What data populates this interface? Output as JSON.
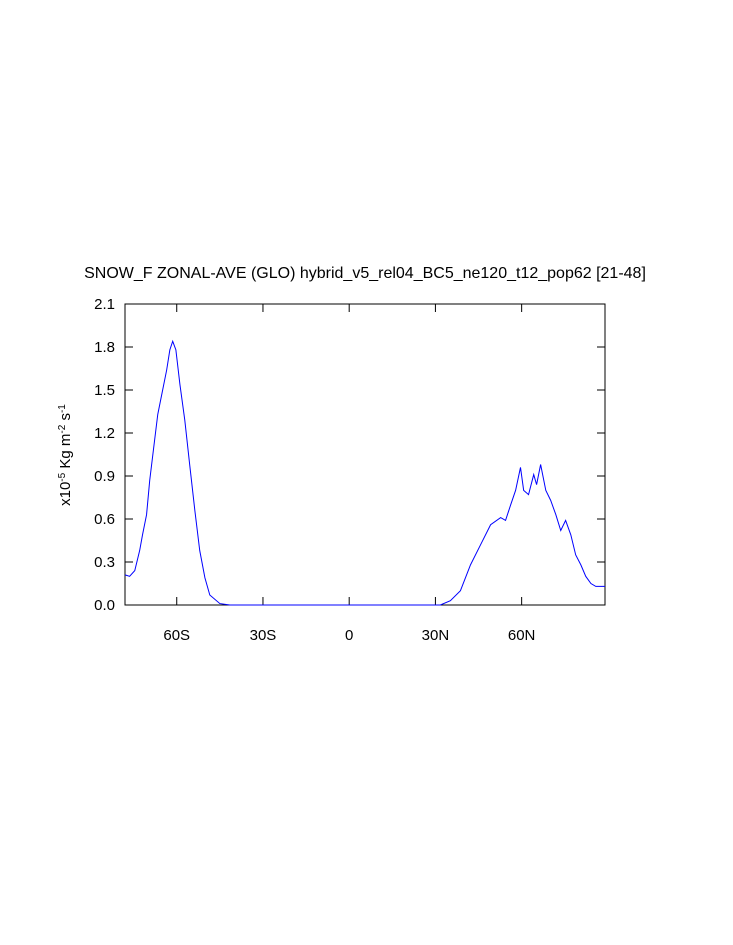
{
  "chart_data": {
    "type": "line",
    "title": "SNOW_F ZONAL-AVE (GLO) hybrid_v5_rel04_BC5_ne120_t12_pop62 [21-48]",
    "ylabel_parts": [
      "x10",
      "-5",
      " Kg m",
      "-2",
      " s",
      "-1"
    ],
    "xlim": [
      -78,
      89
    ],
    "ylim": [
      0,
      2.1
    ],
    "xticks": [
      {
        "value": -60,
        "label": "60S"
      },
      {
        "value": -30,
        "label": "30S"
      },
      0,
      {
        "value": 30,
        "label": "30N"
      },
      {
        "value": 60,
        "label": "60N"
      }
    ],
    "yticks": [
      {
        "value": 0,
        "label": "0.0"
      },
      0.3,
      0.6,
      0.9,
      1.2,
      1.5,
      1.8,
      2.1
    ],
    "series": [
      {
        "color": "#0000ff",
        "x": [
          -78,
          -76.4,
          -74.6,
          -72.9,
          -71.9,
          -70.5,
          -69.4,
          -67.7,
          -66.6,
          -64.9,
          -63.5,
          -62.4,
          -61.4,
          -60.3,
          -58.9,
          -57.2,
          -55.5,
          -53.7,
          -52,
          -50.2,
          -48.5,
          -45,
          -41.5,
          -20,
          0,
          20,
          31.7,
          35.2,
          38.7,
          42.2,
          45.7,
          49.2,
          52.7,
          54.4,
          56.2,
          57.9,
          59.6,
          60.7,
          62.4,
          64.2,
          65.2,
          66.6,
          68.4,
          70.1,
          71.9,
          73.6,
          75.3,
          77.1,
          78.8,
          80.6,
          82.3,
          84.1,
          85.8,
          89
        ],
        "values": [
          0.21,
          0.2,
          0.24,
          0.38,
          0.49,
          0.63,
          0.87,
          1.15,
          1.33,
          1.5,
          1.64,
          1.78,
          1.84,
          1.78,
          1.54,
          1.29,
          0.98,
          0.66,
          0.38,
          0.19,
          0.07,
          0.01,
          0,
          0,
          0,
          0,
          0,
          0.03,
          0.1,
          0.28,
          0.42,
          0.56,
          0.61,
          0.59,
          0.7,
          0.8,
          0.96,
          0.8,
          0.77,
          0.91,
          0.84,
          0.98,
          0.8,
          0.73,
          0.63,
          0.52,
          0.59,
          0.49,
          0.35,
          0.28,
          0.2,
          0.15,
          0.13,
          0.13
        ]
      }
    ]
  }
}
